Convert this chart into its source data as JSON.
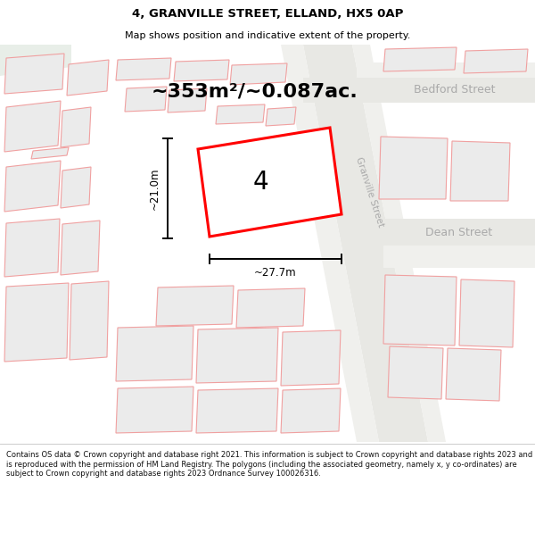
{
  "title_line1": "4, GRANVILLE STREET, ELLAND, HX5 0AP",
  "title_line2": "Map shows position and indicative extent of the property.",
  "area_text": "~353m²/~0.087ac.",
  "property_number": "4",
  "dim_height": "~21.0m",
  "dim_width": "~27.7m",
  "street_granville": "Granville Street",
  "street_bedford": "Bedford Street",
  "street_dean": "Dean Street",
  "footer_text": "Contains OS data © Crown copyright and database right 2021. This information is subject to Crown copyright and database rights 2023 and is reproduced with the permission of HM Land Registry. The polygons (including the associated geometry, namely x, y co-ordinates) are subject to Crown copyright and database rights 2023 Ordnance Survey 100026316.",
  "map_bg": "#f7f7f5",
  "building_fill": "#ebebeb",
  "building_stroke": "#f0a0a0",
  "property_fill": "#ffffff",
  "property_stroke": "#ff0000",
  "white_bg": "#ffffff",
  "road_color": "#ffffff",
  "greenish": "#eef2ee",
  "footer_line": "#cccccc"
}
